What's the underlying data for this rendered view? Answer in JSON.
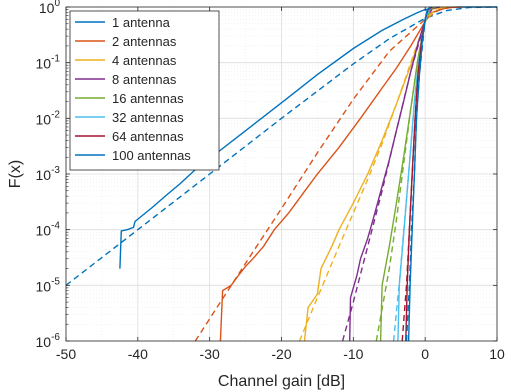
{
  "chart_data": {
    "type": "line",
    "xlabel": "Channel gain [dB]",
    "ylabel": "F(x)",
    "xlim": [
      -50,
      10
    ],
    "ylim": [
      1e-06,
      1
    ],
    "yscale": "log",
    "grid": true,
    "minor_grid": true,
    "legend_position": "top-left",
    "xticks": [
      {
        "value": -50,
        "label": "-50"
      },
      {
        "value": -40,
        "label": "-40"
      },
      {
        "value": -30,
        "label": "-30"
      },
      {
        "value": -20,
        "label": "-20"
      },
      {
        "value": -10,
        "label": "-10"
      },
      {
        "value": 0,
        "label": "0"
      },
      {
        "value": 10,
        "label": "10"
      }
    ],
    "yticks": [
      {
        "exp": -6,
        "base": "10",
        "sup": "-6"
      },
      {
        "exp": -5,
        "base": "10",
        "sup": "-5"
      },
      {
        "exp": -4,
        "base": "10",
        "sup": "-4"
      },
      {
        "exp": -3,
        "base": "10",
        "sup": "-3"
      },
      {
        "exp": -2,
        "base": "10",
        "sup": "-2"
      },
      {
        "exp": -1,
        "base": "10",
        "sup": "-1"
      },
      {
        "exp": 0,
        "base": "10",
        "sup": "0"
      }
    ],
    "series": [
      {
        "name": "1 antenna",
        "color": "#0072BD",
        "empirical": [
          [
            -42.5,
            2e-05
          ],
          [
            -42.3,
            9.5e-05
          ],
          [
            -41.5,
            0.0001
          ],
          [
            -40.6,
            0.00011
          ],
          [
            -40.4,
            0.00014
          ],
          [
            -38,
            0.00025
          ],
          [
            -36,
            0.00042
          ],
          [
            -34,
            0.00069
          ],
          [
            -32,
            0.0012
          ],
          [
            -30,
            0.0019
          ],
          [
            -25,
            0.006
          ],
          [
            -20,
            0.019
          ],
          [
            -15,
            0.061
          ],
          [
            -10,
            0.18
          ],
          [
            -6,
            0.38
          ],
          [
            -3,
            0.6
          ],
          [
            -1,
            0.8
          ],
          [
            0,
            0.9
          ],
          [
            2,
            0.98
          ],
          [
            5,
            1.0
          ],
          [
            10,
            1.0
          ]
        ],
        "theory": [
          [
            -50,
            1e-05
          ],
          [
            -40,
            0.0001
          ],
          [
            -30,
            0.001
          ],
          [
            -20,
            0.01
          ],
          [
            -10,
            0.095
          ],
          [
            -5,
            0.27
          ],
          [
            0,
            0.63
          ],
          [
            3,
            0.86
          ],
          [
            6,
            0.98
          ],
          [
            10,
            1.0
          ]
        ]
      },
      {
        "name": "2 antennas",
        "color": "#D95319",
        "empirical": [
          [
            -28.5,
            1e-06
          ],
          [
            -28.2,
            8e-06
          ],
          [
            -27,
            1e-05
          ],
          [
            -26,
            1.5e-05
          ],
          [
            -25,
            2.2e-05
          ],
          [
            -24,
            3e-05
          ],
          [
            -22.5,
            5e-05
          ],
          [
            -21,
            0.0001
          ],
          [
            -19,
            0.0002
          ],
          [
            -17,
            0.00045
          ],
          [
            -15,
            0.001
          ],
          [
            -12,
            0.003
          ],
          [
            -9,
            0.01
          ],
          [
            -6,
            0.035
          ],
          [
            -4,
            0.08
          ],
          [
            -2,
            0.2
          ],
          [
            0,
            0.55
          ],
          [
            1,
            0.8
          ],
          [
            3,
            0.97
          ],
          [
            5,
            1.0
          ]
        ],
        "theory": [
          [
            -32,
            1e-06
          ],
          [
            -25,
            2.5e-05
          ],
          [
            -20,
            0.00024
          ],
          [
            -15,
            0.0024
          ],
          [
            -10,
            0.022
          ],
          [
            -5,
            0.16
          ],
          [
            0,
            0.6
          ],
          [
            2,
            0.9
          ],
          [
            4,
            1.0
          ]
        ]
      },
      {
        "name": "4 antennas",
        "color": "#EDB120",
        "empirical": [
          [
            -16.8,
            1e-06
          ],
          [
            -16.3,
            4e-06
          ],
          [
            -15,
            7e-06
          ],
          [
            -14.5,
            2e-05
          ],
          [
            -13,
            5e-05
          ],
          [
            -12,
            0.0001
          ],
          [
            -10,
            0.0003
          ],
          [
            -8,
            0.001
          ],
          [
            -6,
            0.004
          ],
          [
            -4,
            0.018
          ],
          [
            -2,
            0.09
          ],
          [
            0,
            0.55
          ],
          [
            1,
            0.92
          ],
          [
            3,
            1.0
          ]
        ],
        "theory": [
          [
            -17.5,
            1e-06
          ],
          [
            -15,
            6e-06
          ],
          [
            -12,
            5e-05
          ],
          [
            -10,
            0.0002
          ],
          [
            -8,
            0.0008
          ],
          [
            -6,
            0.0035
          ],
          [
            -4,
            0.018
          ],
          [
            -2,
            0.1
          ],
          [
            0,
            0.55
          ],
          [
            1.5,
            0.93
          ],
          [
            3,
            1.0
          ]
        ]
      },
      {
        "name": "8 antennas",
        "color": "#7E2F8E",
        "empirical": [
          [
            -10.5,
            1e-06
          ],
          [
            -10.4,
            6e-06
          ],
          [
            -9.5,
            1.5e-05
          ],
          [
            -9,
            3e-05
          ],
          [
            -8,
            7e-05
          ],
          [
            -7,
            0.0002
          ],
          [
            -6,
            0.0006
          ],
          [
            -5,
            0.0018
          ],
          [
            -4,
            0.006
          ],
          [
            -3,
            0.02
          ],
          [
            -2,
            0.07
          ],
          [
            -1,
            0.22
          ],
          [
            0,
            0.58
          ],
          [
            0.8,
            0.92
          ],
          [
            2,
            1.0
          ]
        ],
        "theory": [
          [
            -11.5,
            1e-06
          ],
          [
            -10,
            5e-06
          ],
          [
            -8,
            5e-05
          ],
          [
            -6,
            0.0005
          ],
          [
            -4,
            0.006
          ],
          [
            -2,
            0.07
          ],
          [
            0,
            0.56
          ],
          [
            1,
            0.95
          ],
          [
            2,
            1.0
          ]
        ]
      },
      {
        "name": "16 antennas",
        "color": "#77AC30",
        "empirical": [
          [
            -6.2,
            1e-06
          ],
          [
            -6,
            1e-05
          ],
          [
            -5,
            5e-05
          ],
          [
            -4,
            0.0003
          ],
          [
            -3,
            0.002
          ],
          [
            -2,
            0.015
          ],
          [
            -1,
            0.12
          ],
          [
            0,
            0.55
          ],
          [
            0.7,
            0.92
          ],
          [
            1.5,
            1.0
          ]
        ],
        "theory": [
          [
            -6.8,
            1e-06
          ],
          [
            -5,
            2e-05
          ],
          [
            -4,
            0.00015
          ],
          [
            -3,
            0.0015
          ],
          [
            -2,
            0.015
          ],
          [
            -1,
            0.12
          ],
          [
            0,
            0.55
          ],
          [
            0.7,
            0.93
          ],
          [
            1.5,
            1.0
          ]
        ]
      },
      {
        "name": "32 antennas",
        "color": "#4DBEEE",
        "empirical": [
          [
            -3.8,
            1e-06
          ],
          [
            -3.6,
            1e-05
          ],
          [
            -3,
            8e-05
          ],
          [
            -2.5,
            0.0005
          ],
          [
            -2,
            0.003
          ],
          [
            -1.5,
            0.02
          ],
          [
            -1,
            0.08
          ],
          [
            -0.5,
            0.25
          ],
          [
            0,
            0.55
          ],
          [
            0.5,
            0.88
          ],
          [
            1,
            1.0
          ]
        ],
        "theory": [
          [
            -4.4,
            1e-06
          ],
          [
            -3.5,
            1.5e-05
          ],
          [
            -3,
            9e-05
          ],
          [
            -2.5,
            0.0005
          ],
          [
            -2,
            0.003
          ],
          [
            -1.5,
            0.02
          ],
          [
            -1,
            0.08
          ],
          [
            0,
            0.55
          ],
          [
            0.5,
            0.88
          ],
          [
            1,
            1.0
          ]
        ]
      },
      {
        "name": "64 antennas",
        "color": "#A2142F",
        "empirical": [
          [
            -2.7,
            1e-06
          ],
          [
            -2.5,
            1e-05
          ],
          [
            -2.2,
            0.0001
          ],
          [
            -1.8,
            0.001
          ],
          [
            -1.4,
            0.01
          ],
          [
            -1,
            0.06
          ],
          [
            -0.5,
            0.25
          ],
          [
            0,
            0.6
          ],
          [
            0.4,
            0.9
          ],
          [
            1,
            1.0
          ]
        ],
        "theory": [
          [
            -3.2,
            1e-06
          ],
          [
            -2.6,
            1e-05
          ],
          [
            -2.2,
            0.0001
          ],
          [
            -1.8,
            0.001
          ],
          [
            -1.4,
            0.01
          ],
          [
            -1,
            0.06
          ],
          [
            0,
            0.6
          ],
          [
            0.4,
            0.9
          ],
          [
            1,
            1.0
          ]
        ]
      },
      {
        "name": "100 antennas",
        "color": "#0072BD",
        "empirical": [
          [
            -2.3,
            1e-06
          ],
          [
            -2.1,
            1e-05
          ],
          [
            -1.8,
            0.0001
          ],
          [
            -1.5,
            0.001
          ],
          [
            -1.2,
            0.01
          ],
          [
            -0.8,
            0.06
          ],
          [
            -0.4,
            0.25
          ],
          [
            0,
            0.6
          ],
          [
            0.3,
            0.9
          ],
          [
            0.8,
            1.0
          ]
        ],
        "theory": [
          [
            -2.6,
            1e-06
          ],
          [
            -2.2,
            1e-05
          ],
          [
            -1.9,
            0.0001
          ],
          [
            -1.5,
            0.001
          ],
          [
            -1.2,
            0.01
          ],
          [
            -0.8,
            0.06
          ],
          [
            0,
            0.6
          ],
          [
            0.3,
            0.9
          ],
          [
            0.8,
            1.0
          ]
        ]
      }
    ]
  }
}
